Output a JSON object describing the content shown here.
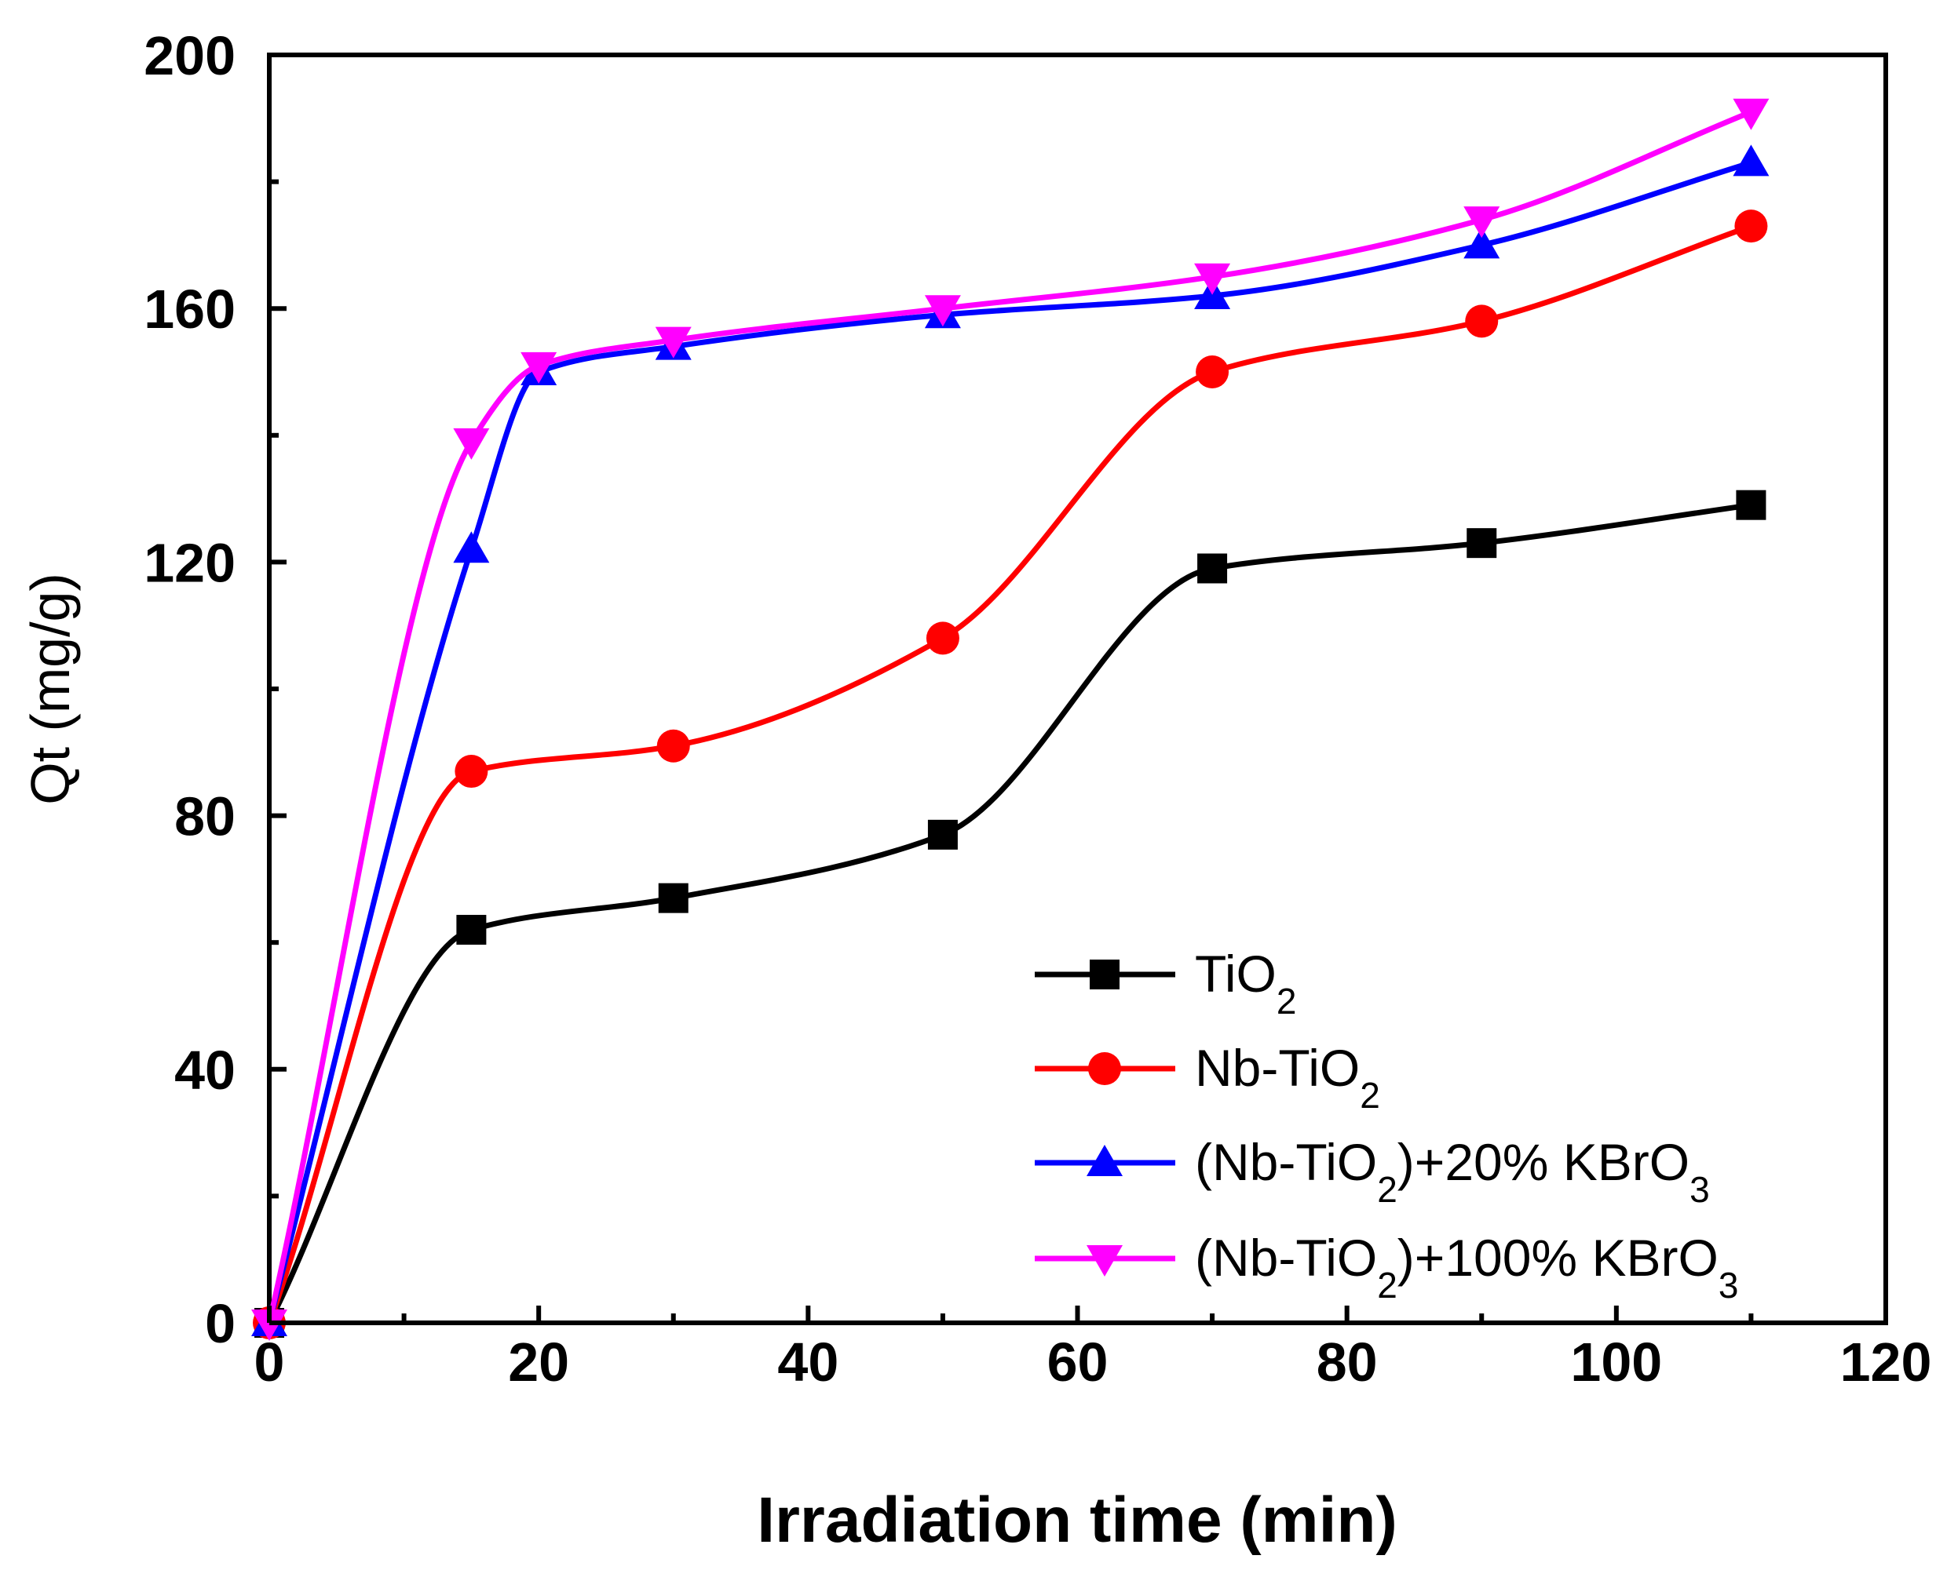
{
  "chart_data": {
    "type": "line",
    "title": "",
    "xlabel": "Irradiation time (min)",
    "ylabel": "Qt (mg/g)",
    "xlim": [
      0,
      120
    ],
    "ylim": [
      0,
      200
    ],
    "xticks": [
      0,
      20,
      40,
      60,
      80,
      100,
      120
    ],
    "yticks": [
      0,
      40,
      80,
      120,
      160,
      200
    ],
    "xtick_labels": [
      "0",
      "20",
      "40",
      "60",
      "80",
      "100",
      "120"
    ],
    "ytick_labels": [
      "0",
      "40",
      "80",
      "120",
      "160",
      "200"
    ],
    "grid": false,
    "legend_position": "bottom-right",
    "series": [
      {
        "name": "TiO2",
        "legend_parts": [
          {
            "t": "TiO"
          },
          {
            "t": "2",
            "sub": true
          }
        ],
        "color": "#000000",
        "marker": "square",
        "x": [
          0,
          15,
          30,
          50,
          70,
          90,
          110
        ],
        "y": [
          0,
          62,
          67,
          77,
          119,
          123,
          129
        ]
      },
      {
        "name": "Nb-TiO2",
        "legend_parts": [
          {
            "t": "Nb-TiO"
          },
          {
            "t": "2",
            "sub": true
          }
        ],
        "color": "#ff0000",
        "marker": "circle",
        "x": [
          0,
          15,
          30,
          50,
          70,
          90,
          110
        ],
        "y": [
          0,
          87,
          91,
          108,
          150,
          158,
          173
        ]
      },
      {
        "name": "(Nb-TiO2)+20% KBrO3",
        "legend_parts": [
          {
            "t": "(Nb-TiO"
          },
          {
            "t": "2",
            "sub": true
          },
          {
            "t": ")+20% KBrO"
          },
          {
            "t": "3",
            "sub": true
          }
        ],
        "color": "#0000ff",
        "marker": "triangle-up",
        "x": [
          0,
          15,
          20,
          30,
          50,
          70,
          90,
          110
        ],
        "y": [
          0,
          122,
          150,
          154,
          159,
          162,
          170,
          183
        ]
      },
      {
        "name": "(Nb-TiO2)+100% KBrO3",
        "legend_parts": [
          {
            "t": "(Nb-TiO"
          },
          {
            "t": "2",
            "sub": true
          },
          {
            "t": ")+100% KBrO"
          },
          {
            "t": "3",
            "sub": true
          }
        ],
        "color": "#ff00ff",
        "marker": "triangle-down",
        "x": [
          0,
          15,
          20,
          30,
          50,
          70,
          90,
          110
        ],
        "y": [
          0,
          139,
          151,
          155,
          160,
          165,
          174,
          191
        ]
      }
    ]
  }
}
